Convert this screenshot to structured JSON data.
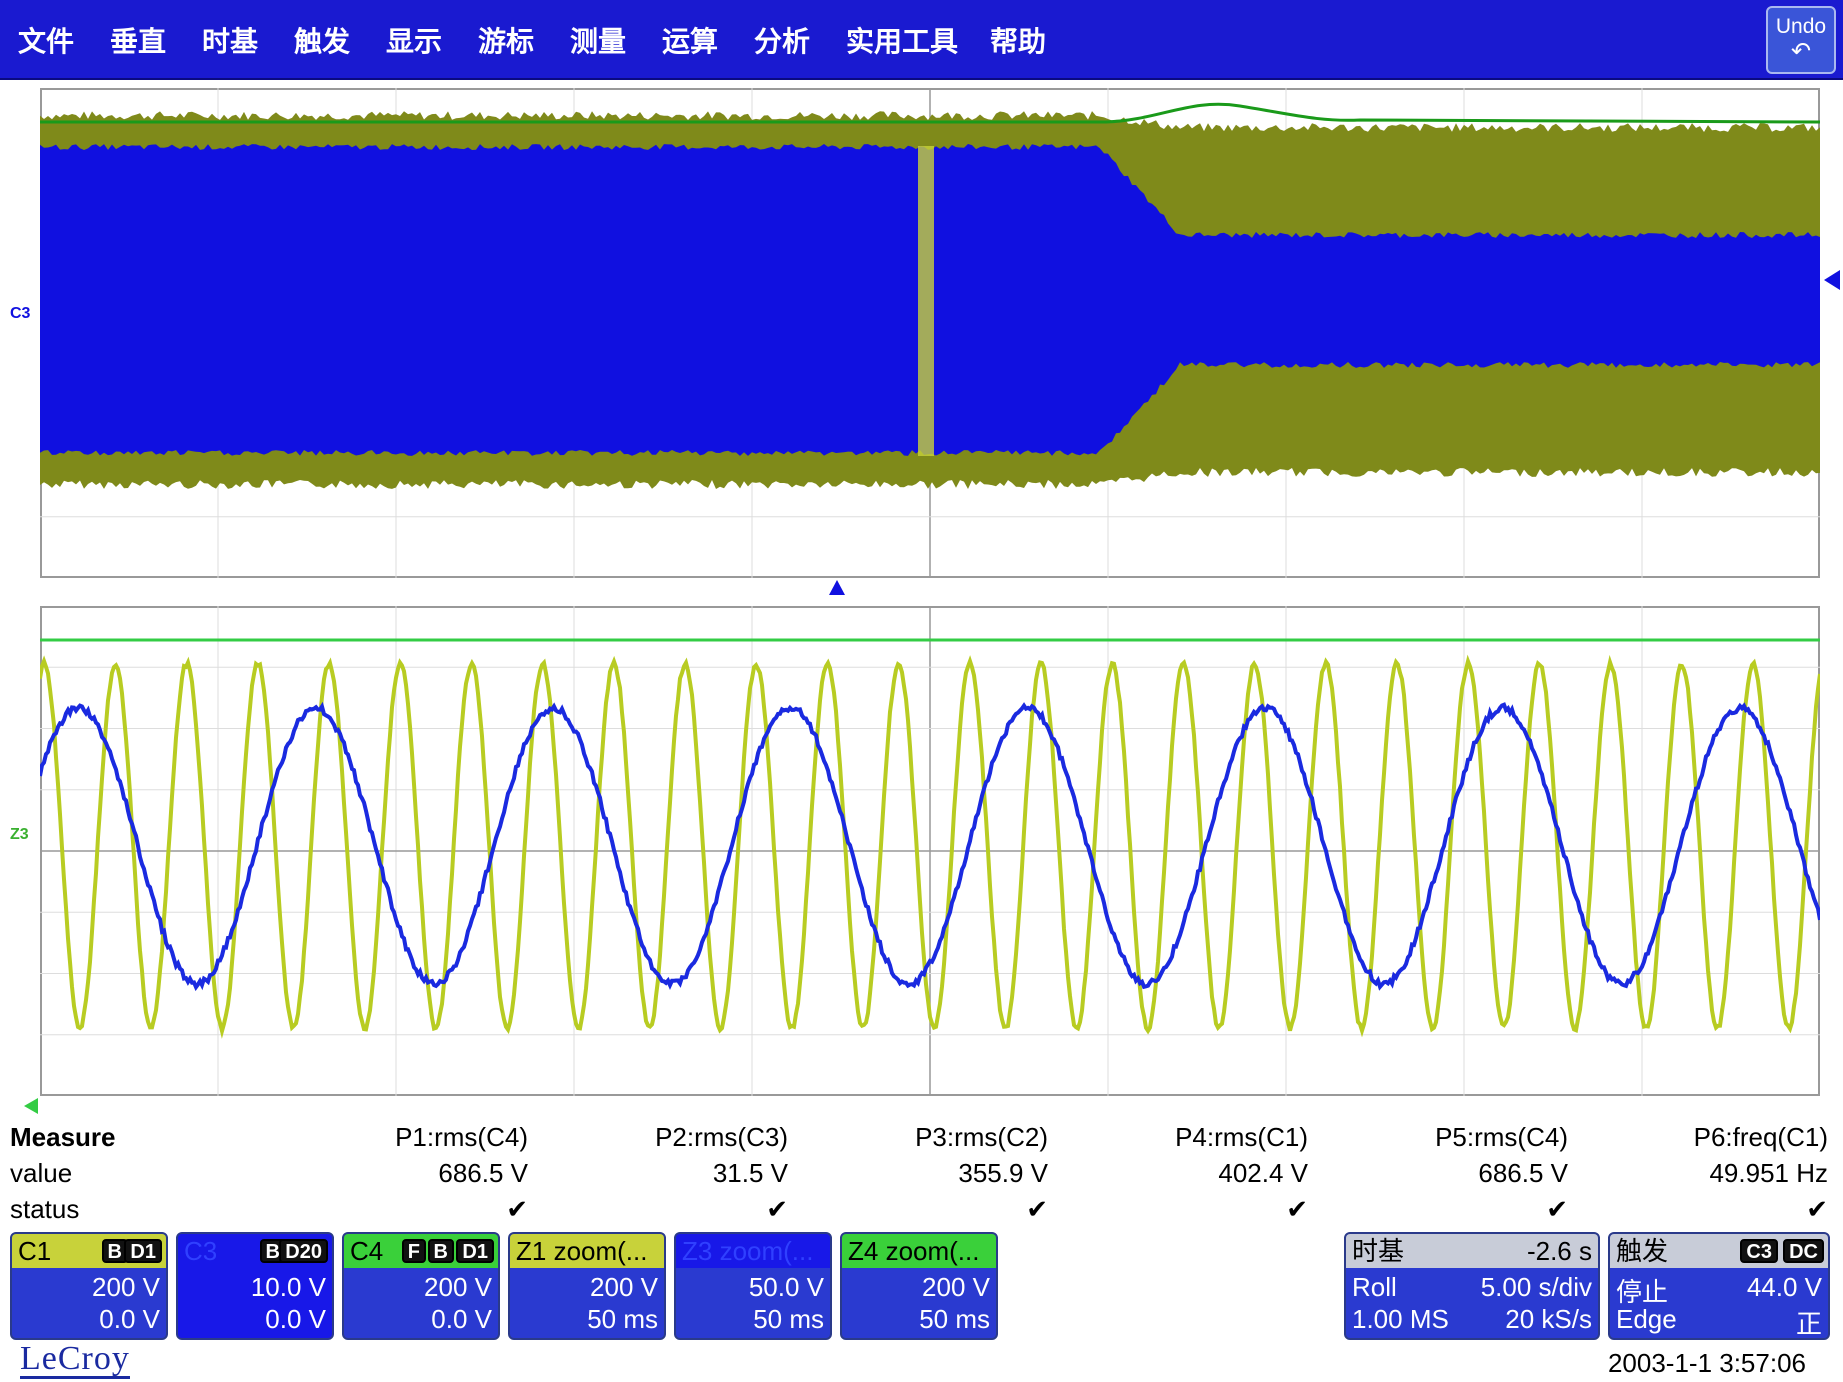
{
  "menu": {
    "items": [
      "文件",
      "垂直",
      "时基",
      "触发",
      "显示",
      "游标",
      "测量",
      "运算",
      "分析",
      "实用工具",
      "帮助"
    ],
    "undo_label": "Undo",
    "undo_icon": "undo-arrow-icon",
    "bg_color": "#1a1ad0"
  },
  "top_grid": {
    "channel_label": "C3",
    "channel_color": "#1010e0",
    "series": [
      {
        "trace": "C3",
        "color": "#1010e0"
      },
      {
        "trace": "C4",
        "color": "#7f8a1a"
      },
      {
        "trace": "C1",
        "color": "#1a9a1a"
      }
    ]
  },
  "bottom_grid": {
    "channel_label": "Z3",
    "cycles_blue": 7.5,
    "cycles_yellow": 25,
    "series": [
      {
        "trace": "Z3",
        "color": "#1a2ae0"
      },
      {
        "trace": "Z4",
        "color": "#b8cc22"
      },
      {
        "trace": "Z1",
        "color": "#33cc44"
      }
    ]
  },
  "measure": {
    "title": "Measure",
    "value_label": "value",
    "status_label": "status",
    "params": [
      {
        "name": "P1:rms(C4)",
        "value": "686.5 V",
        "status": "✔"
      },
      {
        "name": "P2:rms(C3)",
        "value": "31.5 V",
        "status": "✔"
      },
      {
        "name": "P3:rms(C2)",
        "value": "355.9 V",
        "status": "✔"
      },
      {
        "name": "P4:rms(C1)",
        "value": "402.4 V",
        "status": "✔"
      },
      {
        "name": "P5:rms(C4)",
        "value": "686.5 V",
        "status": "✔"
      },
      {
        "name": "P6:freq(C1)",
        "value": "49.951 Hz",
        "status": "✔"
      }
    ]
  },
  "descriptors": [
    {
      "name": "C1",
      "badges": [
        "B",
        "D1"
      ],
      "v1": "200 V",
      "v2": "0.0 V",
      "hdr_color": "#c8d23a",
      "body_color": "#2a3ad0"
    },
    {
      "name": "C3",
      "badges": [
        "B",
        "D20"
      ],
      "v1": "10.0 V",
      "v2": "0.0 V",
      "hdr_color": "#1818e8",
      "body_color": "#1818e8"
    },
    {
      "name": "C4",
      "badges": [
        "F",
        "B",
        "D1"
      ],
      "v1": "200 V",
      "v2": "0.0 V",
      "hdr_color": "#3ad03a",
      "body_color": "#2a3ad0"
    },
    {
      "name": "Z1 zoom(...",
      "badges": [],
      "v1": "200 V",
      "v2": "50 ms",
      "hdr_color": "#c8d23a",
      "body_color": "#2a3ad0"
    },
    {
      "name": "Z3 zoom(...",
      "badges": [],
      "v1": "50.0 V",
      "v2": "50 ms",
      "hdr_color": "#1818e8",
      "body_color": "#2a3ad0"
    },
    {
      "name": "Z4 zoom(...",
      "badges": [],
      "v1": "200 V",
      "v2": "50 ms",
      "hdr_color": "#3ad03a",
      "body_color": "#2a3ad0"
    }
  ],
  "timebase": {
    "title": "时基",
    "delay": "-2.6 s",
    "mode": "Roll",
    "scale": "5.00 s/div",
    "points": "1.00 MS",
    "rate": "20 kS/s"
  },
  "trigger": {
    "title": "触发",
    "badges": [
      "C3",
      "DC"
    ],
    "state": "停止",
    "level": "44.0 V",
    "type": "Edge",
    "slope": "正"
  },
  "brand": "LeCroy",
  "timestamp": "2003-1-1 3:57:06"
}
